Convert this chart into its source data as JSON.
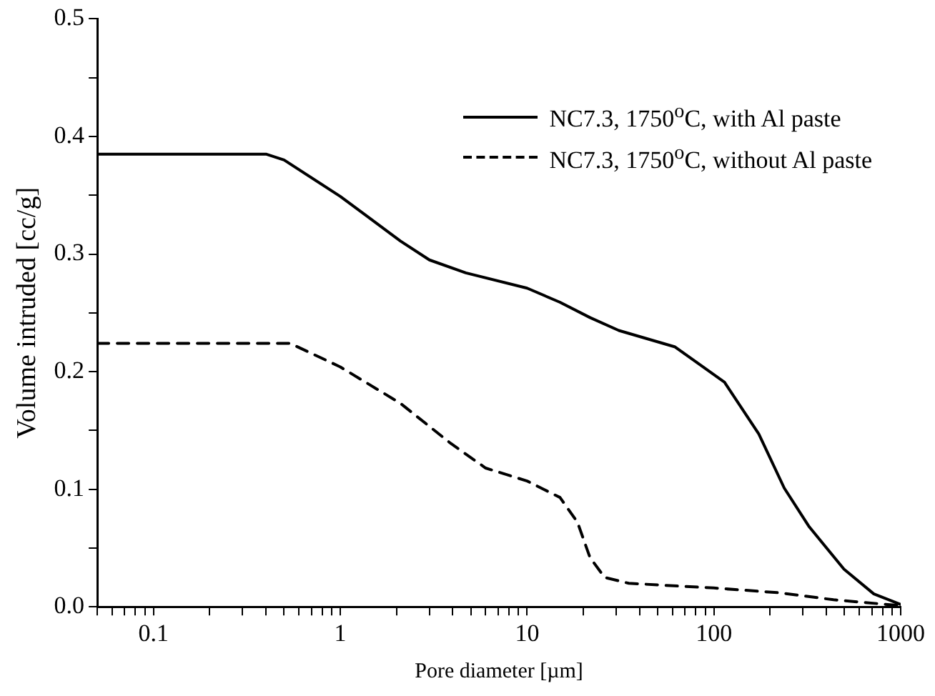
{
  "chart_data": {
    "type": "line",
    "xlabel": "Pore diameter [µm]",
    "ylabel": "Volume intruded [cc/g]",
    "log": "x",
    "xlim": [
      0.05,
      1000
    ],
    "ylim": [
      0,
      0.5
    ],
    "xticks": [
      {
        "value": 0.05,
        "label": null
      },
      {
        "value": 0.06,
        "label": null
      },
      {
        "value": 0.07,
        "label": null
      },
      {
        "value": 0.08,
        "label": null
      },
      {
        "value": 0.09,
        "label": null
      },
      0.1,
      {
        "value": 0.2,
        "label": null
      },
      {
        "value": 0.3,
        "label": null
      },
      {
        "value": 0.4,
        "label": null
      },
      {
        "value": 0.5,
        "label": null
      },
      {
        "value": 0.6,
        "label": null
      },
      {
        "value": 0.7,
        "label": null
      },
      {
        "value": 0.8,
        "label": null
      },
      {
        "value": 0.9,
        "label": null
      },
      1,
      {
        "value": 2,
        "label": null
      },
      {
        "value": 3,
        "label": null
      },
      {
        "value": 4,
        "label": null
      },
      {
        "value": 5,
        "label": null
      },
      {
        "value": 6,
        "label": null
      },
      {
        "value": 7,
        "label": null
      },
      {
        "value": 8,
        "label": null
      },
      {
        "value": 9,
        "label": null
      },
      10,
      {
        "value": 20,
        "label": null
      },
      {
        "value": 30,
        "label": null
      },
      {
        "value": 40,
        "label": null
      },
      {
        "value": 50,
        "label": null
      },
      {
        "value": 60,
        "label": null
      },
      {
        "value": 70,
        "label": null
      },
      {
        "value": 80,
        "label": null
      },
      {
        "value": 90,
        "label": null
      },
      100,
      {
        "value": 200,
        "label": null
      },
      {
        "value": 300,
        "label": null
      },
      {
        "value": 400,
        "label": null
      },
      {
        "value": 500,
        "label": null
      },
      {
        "value": 600,
        "label": null
      },
      {
        "value": 700,
        "label": null
      },
      {
        "value": 800,
        "label": null
      },
      {
        "value": 900,
        "label": null
      },
      1000
    ],
    "yticks": [
      {
        "value": 0,
        "label": "0.0"
      },
      {
        "value": 0.05,
        "label": null
      },
      0.1,
      {
        "value": 0.15,
        "label": null
      },
      0.2,
      {
        "value": 0.25,
        "label": null
      },
      0.3,
      {
        "value": 0.35,
        "label": null
      },
      0.4,
      {
        "value": 0.45,
        "label": null
      },
      0.5
    ],
    "grid": false,
    "legend": "top right",
    "marker": "none",
    "series": [
      {
        "name": "NC7.3, 1750$^{o}$C, with Al paste",
        "color": "#000000",
        "line_style": "solid",
        "x": [
          0.05,
          0.4,
          0.5,
          1,
          2.1,
          3,
          4.7,
          10,
          15,
          21.7,
          31,
          62,
          114,
          174,
          238,
          324,
          497,
          718,
          1000
        ],
        "values": [
          0.385,
          0.385,
          0.38,
          0.349,
          0.311,
          0.295,
          0.284,
          0.271,
          0.259,
          0.246,
          0.235,
          0.221,
          0.191,
          0.147,
          0.101,
          0.068,
          0.032,
          0.011,
          0.002
        ]
      },
      {
        "name": "NC7.3, 1750$^{o}$C, without Al paste",
        "color": "#000000",
        "line_style": "dashed",
        "x": [
          0.05,
          0.54,
          1,
          2.1,
          3.9,
          6,
          10,
          15,
          18.6,
          21.7,
          26,
          35,
          100,
          223,
          437,
          1000
        ],
        "values": [
          0.224,
          0.224,
          0.204,
          0.173,
          0.139,
          0.118,
          0.107,
          0.093,
          0.072,
          0.042,
          0.025,
          0.02,
          0.016,
          0.012,
          0.006,
          0.001
        ]
      }
    ]
  }
}
